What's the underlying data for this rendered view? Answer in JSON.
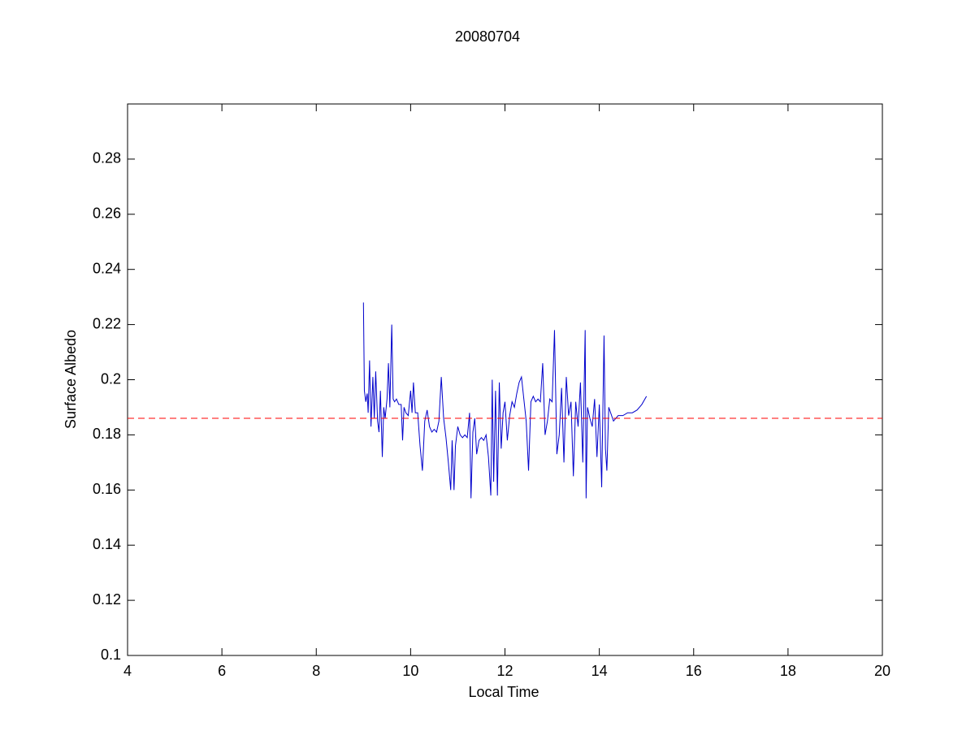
{
  "chart_data": {
    "type": "line",
    "title": "20080704",
    "x_label": "Local Time",
    "y_label": "Surface Albedo",
    "xlim": [
      4,
      20
    ],
    "xticks": [
      4,
      6,
      8,
      10,
      12,
      14,
      16,
      18,
      20
    ],
    "ylim": [
      0.1,
      0.3
    ],
    "yticks": [
      0.1,
      0.12,
      0.14,
      0.16,
      0.18,
      0.2,
      0.22,
      0.24,
      0.26,
      0.28
    ],
    "reference_line": {
      "value": 0.186,
      "color": "#ff0000",
      "style": "dashed"
    },
    "series": [
      {
        "color": "#0000cc",
        "x": [
          9.0,
          9.02,
          9.05,
          9.08,
          9.1,
          9.13,
          9.16,
          9.2,
          9.23,
          9.26,
          9.3,
          9.33,
          9.36,
          9.4,
          9.43,
          9.46,
          9.5,
          9.53,
          9.56,
          9.6,
          9.63,
          9.66,
          9.7,
          9.75,
          9.8,
          9.83,
          9.86,
          9.9,
          9.95,
          10.0,
          10.03,
          10.06,
          10.1,
          10.15,
          10.2,
          10.25,
          10.3,
          10.35,
          10.4,
          10.45,
          10.5,
          10.55,
          10.6,
          10.65,
          10.7,
          10.75,
          10.8,
          10.85,
          10.88,
          10.92,
          10.95,
          11.0,
          11.05,
          11.1,
          11.15,
          11.2,
          11.25,
          11.28,
          11.32,
          11.36,
          11.4,
          11.45,
          11.5,
          11.55,
          11.6,
          11.65,
          11.7,
          11.73,
          11.76,
          11.8,
          11.84,
          11.88,
          11.92,
          11.96,
          12.0,
          12.05,
          12.1,
          12.15,
          12.2,
          12.25,
          12.3,
          12.35,
          12.4,
          12.45,
          12.5,
          12.55,
          12.6,
          12.65,
          12.7,
          12.75,
          12.8,
          12.85,
          12.9,
          12.95,
          13.0,
          13.05,
          13.1,
          13.15,
          13.2,
          13.25,
          13.3,
          13.35,
          13.4,
          13.45,
          13.5,
          13.55,
          13.6,
          13.65,
          13.7,
          13.72,
          13.75,
          13.8,
          13.85,
          13.9,
          13.95,
          14.0,
          14.05,
          14.1,
          14.13,
          14.16,
          14.2,
          14.3,
          14.4,
          14.5,
          14.6,
          14.7,
          14.8,
          14.9,
          15.0
        ],
        "values": [
          0.228,
          0.196,
          0.192,
          0.195,
          0.188,
          0.207,
          0.183,
          0.201,
          0.186,
          0.203,
          0.185,
          0.181,
          0.196,
          0.172,
          0.19,
          0.186,
          0.193,
          0.206,
          0.19,
          0.22,
          0.193,
          0.192,
          0.193,
          0.191,
          0.191,
          0.178,
          0.19,
          0.188,
          0.187,
          0.196,
          0.188,
          0.199,
          0.188,
          0.188,
          0.176,
          0.167,
          0.185,
          0.189,
          0.183,
          0.181,
          0.182,
          0.181,
          0.185,
          0.201,
          0.186,
          0.179,
          0.17,
          0.16,
          0.178,
          0.16,
          0.176,
          0.183,
          0.18,
          0.179,
          0.18,
          0.179,
          0.188,
          0.157,
          0.181,
          0.186,
          0.173,
          0.178,
          0.179,
          0.178,
          0.18,
          0.172,
          0.158,
          0.2,
          0.163,
          0.196,
          0.158,
          0.199,
          0.175,
          0.188,
          0.192,
          0.178,
          0.187,
          0.192,
          0.19,
          0.195,
          0.199,
          0.201,
          0.193,
          0.185,
          0.167,
          0.192,
          0.194,
          0.192,
          0.193,
          0.192,
          0.206,
          0.18,
          0.185,
          0.193,
          0.192,
          0.218,
          0.173,
          0.18,
          0.197,
          0.17,
          0.201,
          0.187,
          0.192,
          0.165,
          0.192,
          0.183,
          0.199,
          0.17,
          0.218,
          0.157,
          0.19,
          0.186,
          0.183,
          0.193,
          0.172,
          0.191,
          0.161,
          0.216,
          0.175,
          0.167,
          0.19,
          0.185,
          0.187,
          0.187,
          0.188,
          0.188,
          0.189,
          0.191,
          0.194
        ]
      }
    ]
  }
}
